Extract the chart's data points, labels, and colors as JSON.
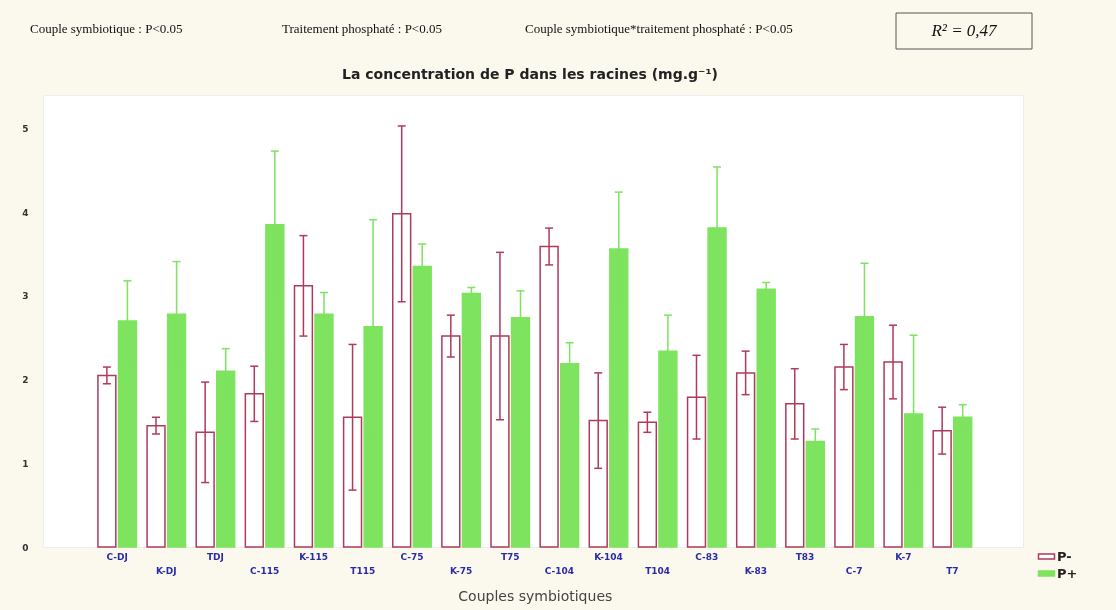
{
  "chart_data": {
    "type": "bar",
    "title": "La concentration de P dans les racines (mg.g⁻¹)",
    "xlabel": "Couples symbiotiques",
    "annotations": [
      "Couple symbiotique : P<0.05",
      "Traitement phosphaté : P<0.05",
      "Couple symbiotique*traitement phosphaté : P<0.05",
      "R² = 0,47"
    ],
    "categories": [
      "C-DJ",
      "K-DJ",
      "TDJ",
      "C-115",
      "K-115",
      "T115",
      "C-75",
      "K-75",
      "T75",
      "C-104",
      "K-104",
      "T104",
      "C-83",
      "K-83",
      "T83",
      "C-7",
      "K-7",
      "T7"
    ],
    "series": [
      {
        "name": "P-",
        "color": "#b03a5b",
        "values": [
          2.05,
          1.45,
          1.37,
          1.83,
          3.12,
          1.55,
          3.98,
          2.52,
          2.52,
          3.59,
          1.51,
          1.49,
          1.79,
          2.08,
          1.71,
          2.15,
          2.21,
          1.39
        ],
        "errors": [
          0.1,
          0.1,
          0.6,
          0.33,
          0.6,
          0.87,
          1.05,
          0.25,
          1.0,
          0.22,
          0.57,
          0.12,
          0.5,
          0.26,
          0.42,
          0.27,
          0.44,
          0.28
        ]
      },
      {
        "name": "P+",
        "color": "#7ee35f",
        "values": [
          2.7,
          2.78,
          2.1,
          3.85,
          2.78,
          2.63,
          3.35,
          3.03,
          2.74,
          2.19,
          3.56,
          2.34,
          3.81,
          3.08,
          1.26,
          2.75,
          1.59,
          1.55
        ],
        "errors": [
          0.48,
          0.63,
          0.27,
          0.88,
          0.26,
          1.28,
          0.27,
          0.07,
          0.32,
          0.25,
          0.68,
          0.43,
          0.73,
          0.08,
          0.15,
          0.64,
          0.94,
          0.15
        ]
      }
    ],
    "ylim": [
      0,
      5.4
    ],
    "yticks": [
      0,
      1,
      2,
      3,
      4,
      5
    ],
    "grid": false,
    "legend": "bottom right"
  }
}
